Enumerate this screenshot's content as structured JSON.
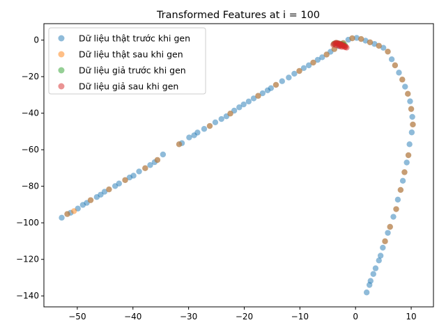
{
  "chart_data": {
    "type": "scatter",
    "title": "Transformed Features at i = 100",
    "xlabel": "",
    "ylabel": "",
    "xlim": [
      -56,
      14
    ],
    "ylim": [
      -146,
      9
    ],
    "xticks": [
      -50,
      -40,
      -30,
      -20,
      -10,
      0,
      10
    ],
    "yticks": [
      0,
      -20,
      -40,
      -60,
      -80,
      -100,
      -120,
      -140
    ],
    "grid": false,
    "legend_position": "upper-left",
    "series": [
      {
        "name": "Dữ liệu thật trước khi gen",
        "color": "#1f77b4",
        "points": [
          [
            -52.8,
            -97.2
          ],
          [
            -51.8,
            -95.2
          ],
          [
            -51.2,
            -94.5
          ],
          [
            -49.9,
            -92.2
          ],
          [
            -49.0,
            -90.2
          ],
          [
            -48.3,
            -89.1
          ],
          [
            -47.6,
            -87.6
          ],
          [
            -46.5,
            -85.9
          ],
          [
            -45.8,
            -84.6
          ],
          [
            -45.1,
            -83.0
          ],
          [
            -44.3,
            -81.7
          ],
          [
            -43.2,
            -79.9
          ],
          [
            -42.5,
            -78.5
          ],
          [
            -41.4,
            -76.6
          ],
          [
            -40.6,
            -75.2
          ],
          [
            -39.9,
            -74.2
          ],
          [
            -38.9,
            -71.9
          ],
          [
            -37.8,
            -70.1
          ],
          [
            -36.9,
            -68.4
          ],
          [
            -36.1,
            -66.8
          ],
          [
            -35.6,
            -65.6
          ],
          [
            -34.6,
            -62.6
          ],
          [
            -31.7,
            -57.0
          ],
          [
            -31.2,
            -56.4
          ],
          [
            -29.9,
            -53.3
          ],
          [
            -29.0,
            -52.1
          ],
          [
            -28.4,
            -50.6
          ],
          [
            -27.2,
            -48.6
          ],
          [
            -26.2,
            -47.0
          ],
          [
            -25.2,
            -45.0
          ],
          [
            -24.1,
            -43.2
          ],
          [
            -23.2,
            -41.7
          ],
          [
            -22.5,
            -40.2
          ],
          [
            -21.8,
            -38.6
          ],
          [
            -20.9,
            -36.8
          ],
          [
            -20.1,
            -35.2
          ],
          [
            -19.2,
            -33.6
          ],
          [
            -18.3,
            -31.9
          ],
          [
            -17.5,
            -30.5
          ],
          [
            -16.7,
            -29.1
          ],
          [
            -15.8,
            -27.5
          ],
          [
            -15.2,
            -26.3
          ],
          [
            -14.3,
            -24.5
          ],
          [
            -13.2,
            -22.5
          ],
          [
            -12.0,
            -20.5
          ],
          [
            -11.0,
            -18.4
          ],
          [
            -10.1,
            -16.9
          ],
          [
            -9.3,
            -15.3
          ],
          [
            -8.4,
            -13.8
          ],
          [
            -7.6,
            -12.3
          ],
          [
            -6.8,
            -10.8
          ],
          [
            -6.0,
            -9.4
          ],
          [
            -5.2,
            -7.9
          ],
          [
            -4.5,
            -6.4
          ],
          [
            -3.8,
            -4.9
          ],
          [
            -3.0,
            -3.3
          ],
          [
            -2.2,
            -1.6
          ],
          [
            -1.3,
            0.2
          ],
          [
            -0.6,
            1.0
          ],
          [
            0.2,
            1.2
          ],
          [
            1.0,
            0.6
          ],
          [
            1.8,
            -0.3
          ],
          [
            2.6,
            -1.2
          ],
          [
            3.4,
            -2.1
          ],
          [
            4.2,
            -3.1
          ],
          [
            5.0,
            -4.2
          ],
          [
            5.8,
            -6.3
          ],
          [
            6.5,
            -10.5
          ],
          [
            7.1,
            -13.8
          ],
          [
            7.8,
            -17.8
          ],
          [
            8.4,
            -21.6
          ],
          [
            8.9,
            -25.5
          ],
          [
            9.4,
            -29.4
          ],
          [
            9.8,
            -33.5
          ],
          [
            10.0,
            -37.7
          ],
          [
            10.2,
            -42.0
          ],
          [
            10.3,
            -46.2
          ],
          [
            10.1,
            -50.5
          ],
          [
            9.7,
            -57.0
          ],
          [
            9.5,
            -63.0
          ],
          [
            9.2,
            -67.0
          ],
          [
            8.8,
            -72.3
          ],
          [
            8.5,
            -77.0
          ],
          [
            8.1,
            -82.0
          ],
          [
            7.6,
            -87.3
          ],
          [
            7.3,
            -92.5
          ],
          [
            6.8,
            -96.7
          ],
          [
            6.2,
            -102.2
          ],
          [
            5.8,
            -105.5
          ],
          [
            5.3,
            -110.1
          ],
          [
            4.9,
            -113.6
          ],
          [
            4.5,
            -118.0
          ],
          [
            4.2,
            -120.6
          ],
          [
            3.6,
            -124.9
          ],
          [
            3.2,
            -128.0
          ],
          [
            2.7,
            -131.8
          ],
          [
            2.5,
            -134.0
          ],
          [
            2.0,
            -138.1
          ]
        ]
      },
      {
        "name": "Dữ liệu thật sau khi gen",
        "color": "#ff7f0e",
        "points": [
          [
            -51.8,
            -95.2
          ],
          [
            -50.6,
            -93.6
          ],
          [
            -47.6,
            -87.6
          ],
          [
            -44.3,
            -81.7
          ],
          [
            -41.4,
            -76.6
          ],
          [
            -37.8,
            -70.1
          ],
          [
            -35.6,
            -65.6
          ],
          [
            -31.7,
            -57.0
          ],
          [
            -26.2,
            -47.0
          ],
          [
            -22.5,
            -40.2
          ],
          [
            -17.5,
            -30.5
          ],
          [
            -14.3,
            -24.5
          ],
          [
            -10.1,
            -16.9
          ],
          [
            -7.6,
            -12.3
          ],
          [
            -5.2,
            -7.9
          ],
          [
            -3.8,
            -4.9
          ],
          [
            -2.2,
            -1.6
          ],
          [
            -0.6,
            1.0
          ],
          [
            1.0,
            0.6
          ],
          [
            2.6,
            -1.2
          ],
          [
            4.2,
            -3.1
          ],
          [
            5.8,
            -6.3
          ],
          [
            7.1,
            -13.8
          ],
          [
            8.4,
            -21.6
          ],
          [
            9.4,
            -29.4
          ],
          [
            10.0,
            -37.7
          ],
          [
            10.3,
            -46.2
          ],
          [
            9.5,
            -63.0
          ],
          [
            8.8,
            -72.3
          ],
          [
            8.1,
            -82.0
          ],
          [
            7.3,
            -92.5
          ],
          [
            6.2,
            -102.2
          ],
          [
            5.3,
            -110.1
          ]
        ]
      },
      {
        "name": "Dữ liệu giả trước khi gen",
        "color": "#2ca02c",
        "points": [
          [
            -3.9,
            -2.0
          ],
          [
            -3.5,
            -1.5
          ],
          [
            -3.1,
            -1.8
          ],
          [
            -2.7,
            -2.0
          ],
          [
            -2.3,
            -2.3
          ],
          [
            -1.9,
            -2.8
          ]
        ]
      },
      {
        "name": "Dữ liệu giả sau khi gen",
        "color": "#d62728",
        "points": [
          [
            -4.0,
            -2.5
          ],
          [
            -3.8,
            -2.0
          ],
          [
            -3.6,
            -1.6
          ],
          [
            -3.4,
            -1.5
          ],
          [
            -3.2,
            -1.7
          ],
          [
            -3.0,
            -1.9
          ],
          [
            -2.8,
            -2.1
          ],
          [
            -2.6,
            -2.3
          ],
          [
            -2.4,
            -2.6
          ],
          [
            -2.2,
            -2.9
          ],
          [
            -2.0,
            -3.2
          ],
          [
            -1.8,
            -3.6
          ],
          [
            -1.6,
            -4.1
          ],
          [
            -3.5,
            -2.8
          ],
          [
            -3.1,
            -2.6
          ],
          [
            -2.7,
            -2.9
          ],
          [
            -2.3,
            -3.4
          ],
          [
            -1.9,
            -3.9
          ],
          [
            -2.9,
            -3.3
          ],
          [
            -2.5,
            -3.7
          ]
        ]
      }
    ]
  }
}
